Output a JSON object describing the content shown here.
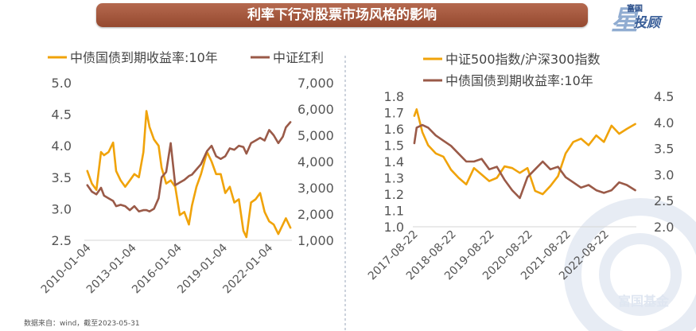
{
  "title": "利率下行对股票市场风格的影响",
  "logo": {
    "brand": "富国",
    "sub": "投顾",
    "mark": "星"
  },
  "watermark": "富国基金",
  "footnote": "数据来自：wind，截至2023-05-31",
  "colors": {
    "gold": "#f0a30a",
    "brown": "#9a5a48",
    "banner": "#a55a3f",
    "text": "#444444"
  },
  "chart_data": [
    {
      "type": "line",
      "series": [
        {
          "name": "中债国债到期收益率:10年",
          "axis": "left",
          "color": "#f0a30a",
          "x": [
            2010.0,
            2010.3,
            2010.6,
            2010.9,
            2011.1,
            2011.4,
            2011.7,
            2011.9,
            2012.2,
            2012.5,
            2012.8,
            2013.1,
            2013.4,
            2013.7,
            2013.9,
            2014.1,
            2014.4,
            2014.7,
            2014.9,
            2015.2,
            2015.5,
            2015.8,
            2016.1,
            2016.4,
            2016.7,
            2016.9,
            2017.2,
            2017.5,
            2017.9,
            2018.2,
            2018.5,
            2018.8,
            2019.1,
            2019.4,
            2019.7,
            2020.0,
            2020.3,
            2020.5,
            2020.8,
            2021.1,
            2021.4,
            2021.7,
            2022.0,
            2022.3,
            2022.6,
            2022.9,
            2023.1,
            2023.4
          ],
          "y": [
            3.6,
            3.4,
            3.3,
            3.9,
            3.85,
            3.9,
            4.05,
            3.6,
            3.45,
            3.35,
            3.45,
            3.55,
            3.5,
            3.9,
            4.55,
            4.3,
            4.1,
            4.0,
            3.65,
            3.4,
            3.45,
            3.35,
            2.9,
            2.95,
            2.75,
            3.05,
            3.35,
            3.55,
            3.9,
            3.75,
            3.55,
            3.55,
            3.25,
            3.35,
            3.1,
            3.15,
            2.65,
            2.55,
            3.1,
            3.15,
            3.25,
            2.95,
            2.8,
            2.75,
            2.6,
            2.75,
            2.85,
            2.7
          ]
        },
        {
          "name": "中证红利",
          "axis": "right",
          "color": "#9a5a48",
          "x": [
            2010.0,
            2010.3,
            2010.6,
            2010.9,
            2011.1,
            2011.4,
            2011.7,
            2011.9,
            2012.2,
            2012.5,
            2012.8,
            2013.1,
            2013.4,
            2013.7,
            2013.9,
            2014.1,
            2014.4,
            2014.7,
            2014.9,
            2015.2,
            2015.5,
            2015.8,
            2016.1,
            2016.4,
            2016.7,
            2016.9,
            2017.2,
            2017.5,
            2017.9,
            2018.2,
            2018.5,
            2018.8,
            2019.1,
            2019.4,
            2019.7,
            2020.0,
            2020.3,
            2020.5,
            2020.8,
            2021.1,
            2021.4,
            2021.7,
            2022.0,
            2022.3,
            2022.6,
            2022.9,
            2023.1,
            2023.4
          ],
          "y": [
            3100,
            2850,
            2750,
            3000,
            2700,
            2600,
            2500,
            2300,
            2350,
            2300,
            2150,
            2300,
            2100,
            2150,
            2150,
            2100,
            2200,
            2600,
            3400,
            3600,
            4700,
            3100,
            3200,
            3300,
            3450,
            3500,
            3700,
            3900,
            4400,
            4600,
            4200,
            4100,
            4200,
            4500,
            4450,
            4600,
            4550,
            4300,
            4700,
            4800,
            4900,
            4800,
            5200,
            5000,
            4700,
            4950,
            5300,
            5500
          ]
        }
      ],
      "left_axis": {
        "ticks": [
          "2.5",
          "3.0",
          "3.5",
          "4.0",
          "4.5",
          "5.0"
        ],
        "range": [
          2.5,
          5.0
        ]
      },
      "right_axis": {
        "ticks": [
          "1,000",
          "2,000",
          "3,000",
          "4,000",
          "5,000",
          "6,000",
          "7,000"
        ],
        "range": [
          1000,
          7000
        ]
      },
      "x_range": [
        2009.8,
        2023.5
      ],
      "x_ticks": [
        {
          "label": "2010-01-04",
          "value": 2010.0
        },
        {
          "label": "2013-01-04",
          "value": 2013.0
        },
        {
          "label": "2016-01-04",
          "value": 2016.0
        },
        {
          "label": "2019-01-04",
          "value": 2019.0
        },
        {
          "label": "2022-01-04",
          "value": 2022.0
        }
      ],
      "legend": "top"
    },
    {
      "type": "line",
      "series": [
        {
          "name": "中证500指数/沪深300指数",
          "axis": "left",
          "color": "#f0a30a",
          "x": [
            2017.64,
            2017.7,
            2017.85,
            2018.0,
            2018.2,
            2018.4,
            2018.6,
            2018.8,
            2019.0,
            2019.2,
            2019.4,
            2019.6,
            2019.8,
            2020.0,
            2020.2,
            2020.4,
            2020.6,
            2020.8,
            2021.0,
            2021.2,
            2021.4,
            2021.6,
            2021.8,
            2022.0,
            2022.2,
            2022.4,
            2022.6,
            2022.8,
            2023.0,
            2023.2,
            2023.42
          ],
          "y": [
            1.68,
            1.72,
            1.58,
            1.5,
            1.45,
            1.43,
            1.35,
            1.3,
            1.26,
            1.36,
            1.32,
            1.28,
            1.3,
            1.37,
            1.36,
            1.33,
            1.36,
            1.22,
            1.2,
            1.25,
            1.31,
            1.45,
            1.52,
            1.54,
            1.5,
            1.56,
            1.52,
            1.62,
            1.57,
            1.6,
            1.63
          ]
        },
        {
          "name": "中债国债到期收益率:10年",
          "axis": "right",
          "color": "#9a5a48",
          "x": [
            2017.64,
            2017.7,
            2017.85,
            2018.0,
            2018.2,
            2018.4,
            2018.6,
            2018.8,
            2019.0,
            2019.2,
            2019.4,
            2019.6,
            2019.8,
            2020.0,
            2020.2,
            2020.4,
            2020.6,
            2020.8,
            2021.0,
            2021.2,
            2021.4,
            2021.6,
            2021.8,
            2022.0,
            2022.2,
            2022.4,
            2022.6,
            2022.8,
            2023.0,
            2023.2,
            2023.42
          ],
          "y": [
            3.6,
            3.9,
            3.95,
            3.9,
            3.75,
            3.65,
            3.55,
            3.4,
            3.25,
            3.25,
            3.3,
            3.1,
            3.15,
            2.9,
            2.7,
            2.55,
            2.95,
            3.1,
            3.25,
            3.1,
            3.15,
            2.95,
            2.85,
            2.75,
            2.8,
            2.7,
            2.65,
            2.7,
            2.85,
            2.8,
            2.7
          ]
        }
      ],
      "left_axis": {
        "ticks": [
          "1.0",
          "1.1",
          "1.2",
          "1.3",
          "1.4",
          "1.5",
          "1.6",
          "1.7",
          "1.8"
        ],
        "range": [
          1.0,
          1.8
        ]
      },
      "right_axis": {
        "ticks": [
          "2.0",
          "2.5",
          "3.0",
          "3.5",
          "4.0",
          "4.5"
        ],
        "range": [
          2.0,
          4.5
        ]
      },
      "x_range": [
        2017.6,
        2023.45
      ],
      "x_ticks": [
        {
          "label": "2017-08-22",
          "value": 2017.64
        },
        {
          "label": "2018-08-22",
          "value": 2018.64
        },
        {
          "label": "2019-08-22",
          "value": 2019.64
        },
        {
          "label": "2020-08-22",
          "value": 2020.64
        },
        {
          "label": "2021-08-22",
          "value": 2021.64
        },
        {
          "label": "2022-08-22",
          "value": 2022.64
        }
      ],
      "legend": "top"
    }
  ]
}
